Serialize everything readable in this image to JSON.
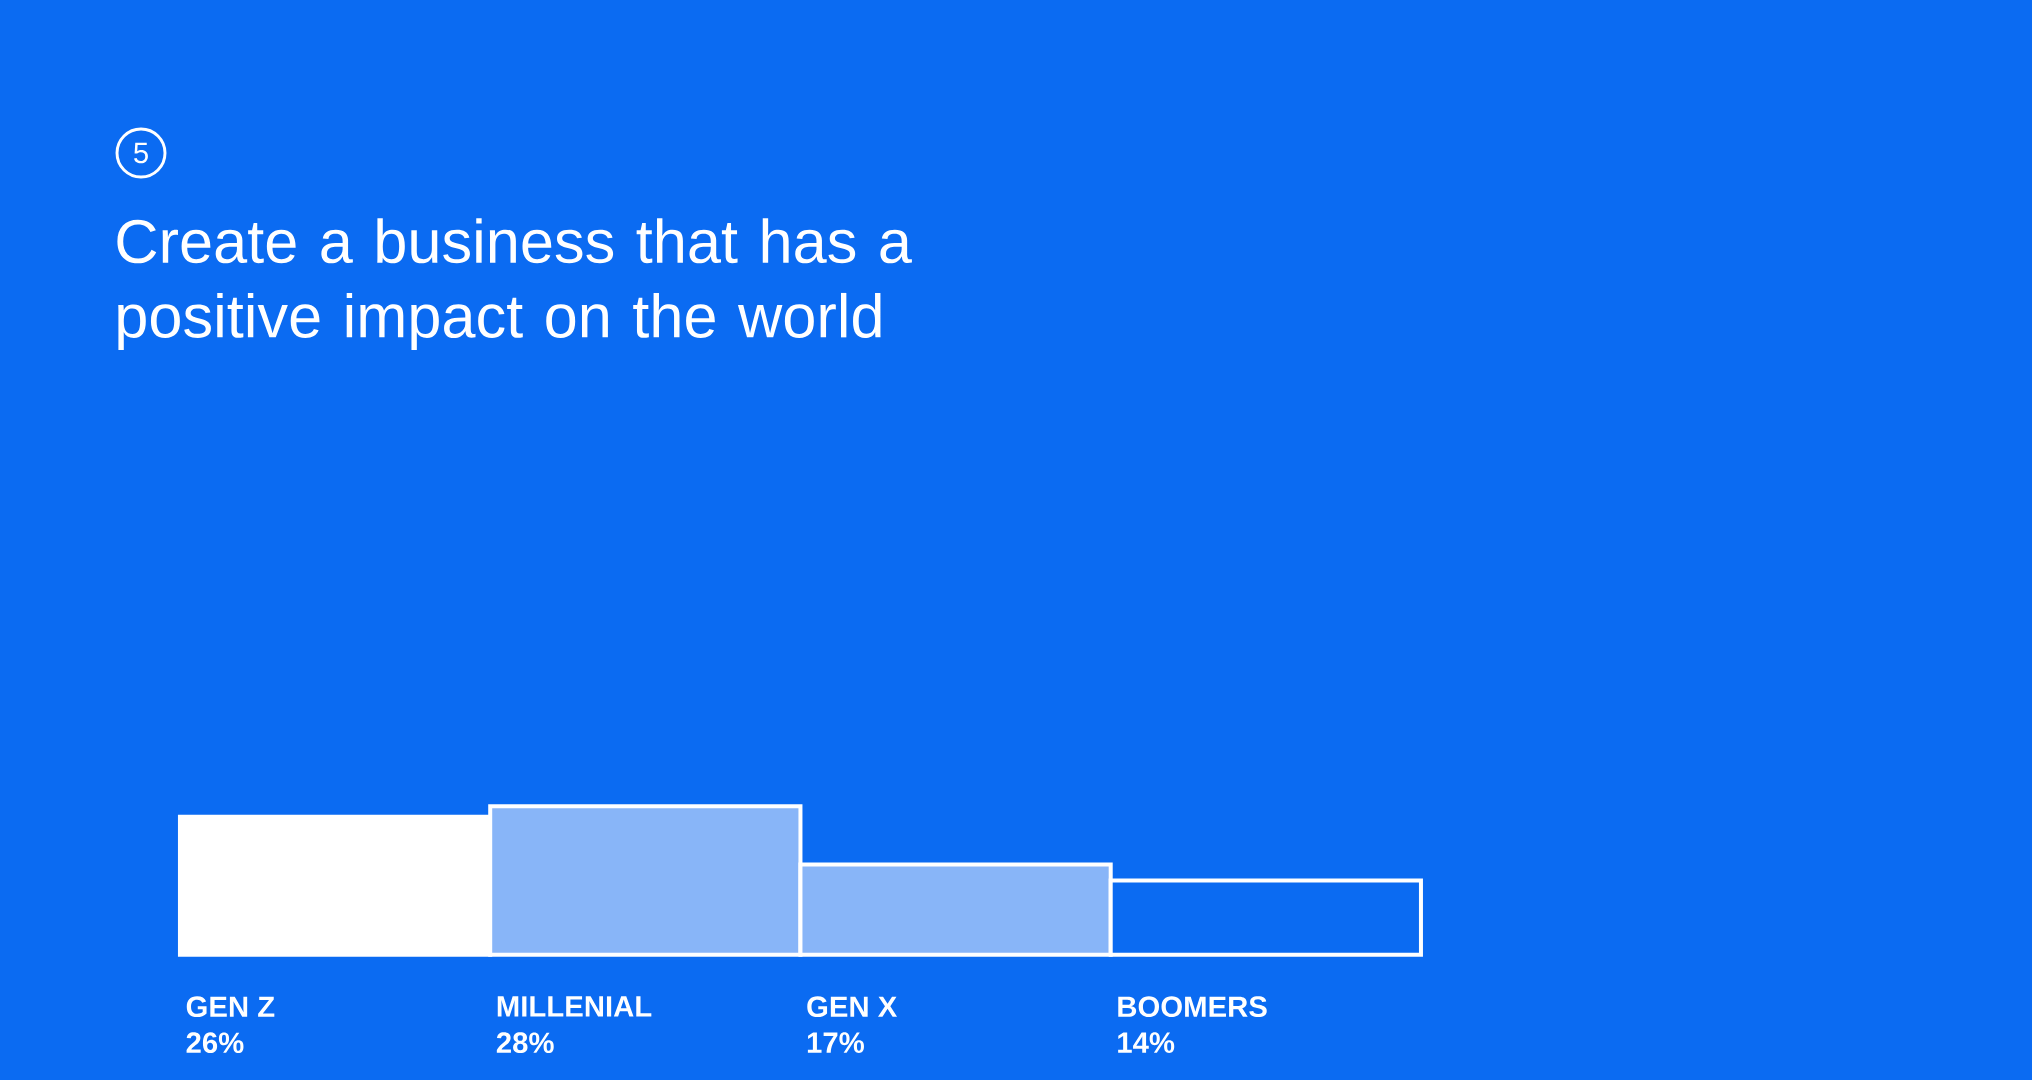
{
  "chart_data": {
    "type": "bar",
    "title": "Create a business that has a positive impact on the world",
    "annotations": [
      "5"
    ],
    "categories": [
      "GEN Z",
      "MILLENIAL",
      "GEN X",
      "BOOMERS"
    ],
    "values": [
      26,
      28,
      17,
      14
    ],
    "colors": [
      "#ffffff",
      "#88b5f8",
      "#88b5f8",
      "#0b6bf2"
    ],
    "value_labels": [
      "26%",
      "28%",
      "17%",
      "14%"
    ]
  }
}
